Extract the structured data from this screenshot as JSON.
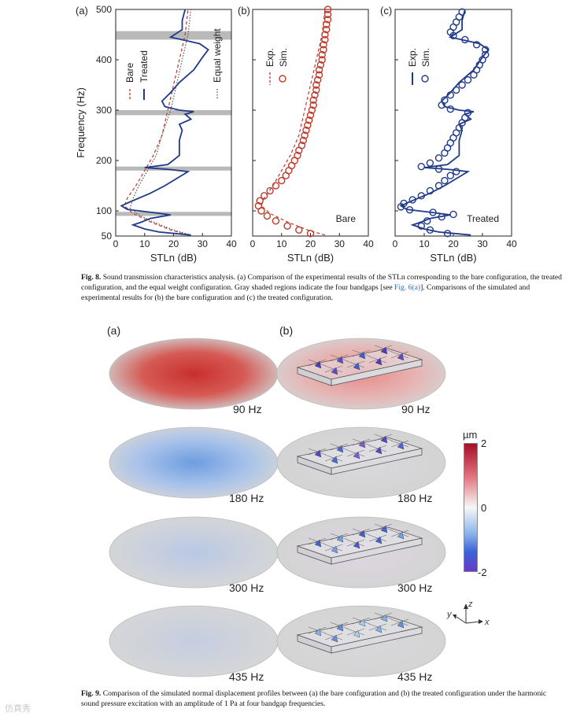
{
  "figure8": {
    "caption_label": "Fig. 8.",
    "caption_text_1": " Sound transmission characteristics analysis. (a) Comparison of the experimental results of the STLn corresponding to the bare configuration, the treated configuration, and the equal weight configuration. Gray shaded regions indicate the four bandgaps [see ",
    "caption_ref": "Fig. 6(a)",
    "caption_text_2": "]. Comparisons of the simulated and experimental results for (b) the bare configuration and (c) the treated configuration.",
    "colors": {
      "bare": "#c0392b",
      "treated": "#1f3a8a",
      "equal": "#555555",
      "band": "#b9b9b9"
    }
  },
  "chart_data": [
    {
      "type": "line",
      "panel": "(a)",
      "xlabel": "STLn (dB)",
      "ylabel": "Frequency (Hz)",
      "xlim": [
        0,
        40
      ],
      "ylim": [
        50,
        500
      ],
      "xticks": [
        "0",
        "10",
        "20",
        "30",
        "40"
      ],
      "yticks": [
        "50",
        "100",
        "200",
        "300",
        "400",
        "500"
      ],
      "bandgaps_hz": [
        [
          90,
          98
        ],
        [
          180,
          188
        ],
        [
          290,
          300
        ],
        [
          440,
          457
        ]
      ],
      "legend": [
        "Bare",
        "Treated",
        "Equal weight"
      ],
      "series": [
        {
          "name": "Bare",
          "style": "dashed",
          "points": [
            [
              25,
              52
            ],
            [
              19,
              62
            ],
            [
              12,
              78
            ],
            [
              6,
              95
            ],
            [
              3,
              110
            ],
            [
              4,
              125
            ],
            [
              7,
              150
            ],
            [
              10,
              180
            ],
            [
              13,
              210
            ],
            [
              16,
              250
            ],
            [
              18,
              300
            ],
            [
              20,
              350
            ],
            [
              22,
              400
            ],
            [
              24,
              450
            ],
            [
              25,
              500
            ]
          ]
        },
        {
          "name": "Treated",
          "style": "solid",
          "points": [
            [
              26,
              52
            ],
            [
              15,
              58
            ],
            [
              10,
              64
            ],
            [
              6,
              72
            ],
            [
              9,
              78
            ],
            [
              12,
              85
            ],
            [
              19,
              92
            ],
            [
              14,
              96
            ],
            [
              4,
              103
            ],
            [
              2,
              110
            ],
            [
              5,
              118
            ],
            [
              12,
              135
            ],
            [
              17,
              150
            ],
            [
              25,
              178
            ],
            [
              19,
              182
            ],
            [
              10,
              186
            ],
            [
              18,
              192
            ],
            [
              22,
              210
            ],
            [
              22,
              240
            ],
            [
              23,
              260
            ],
            [
              22,
              272
            ],
            [
              26,
              282
            ],
            [
              24,
              292
            ],
            [
              27,
              297
            ],
            [
              22,
              300
            ],
            [
              17,
              307
            ],
            [
              16,
              318
            ],
            [
              19,
              335
            ],
            [
              22,
              355
            ],
            [
              27,
              380
            ],
            [
              30,
              405
            ],
            [
              32,
              420
            ],
            [
              29,
              432
            ],
            [
              19,
              445
            ],
            [
              23,
              460
            ],
            [
              23,
              478
            ],
            [
              24,
              500
            ]
          ]
        },
        {
          "name": "Equal weight",
          "style": "dotted",
          "points": [
            [
              26,
              52
            ],
            [
              20,
              62
            ],
            [
              13,
              78
            ],
            [
              8,
              92
            ],
            [
              5,
              106
            ],
            [
              6,
              125
            ],
            [
              8,
              150
            ],
            [
              11,
              180
            ],
            [
              14,
              210
            ],
            [
              16,
              250
            ],
            [
              19,
              300
            ],
            [
              21,
              350
            ],
            [
              23,
              400
            ],
            [
              25,
              450
            ],
            [
              26,
              500
            ]
          ]
        }
      ]
    },
    {
      "type": "scatter",
      "panel": "(b)",
      "xlabel": "STLn (dB)",
      "xlim": [
        0,
        40
      ],
      "ylim": [
        50,
        500
      ],
      "xticks": [
        "0",
        "10",
        "20",
        "30",
        "40"
      ],
      "legend": [
        "Exp.",
        "Sim."
      ],
      "annotation": "Bare",
      "series": [
        {
          "name": "Exp.",
          "style": "dashed",
          "points": [
            [
              25,
              52
            ],
            [
              19,
              62
            ],
            [
              12,
              78
            ],
            [
              6,
              95
            ],
            [
              3,
              110
            ],
            [
              4,
              125
            ],
            [
              7,
              150
            ],
            [
              10,
              180
            ],
            [
              13,
              210
            ],
            [
              16,
              250
            ],
            [
              18,
              300
            ],
            [
              20,
              350
            ],
            [
              22,
              400
            ],
            [
              24,
              450
            ],
            [
              25,
              500
            ]
          ]
        },
        {
          "name": "Sim.",
          "style": "markers",
          "points": [
            [
              20,
              55
            ],
            [
              16,
              62
            ],
            [
              12,
              70
            ],
            [
              8,
              80
            ],
            [
              5,
              90
            ],
            [
              3,
              100
            ],
            [
              2,
              110
            ],
            [
              2.5,
              120
            ],
            [
              4,
              130
            ],
            [
              6,
              140
            ],
            [
              8,
              150
            ],
            [
              10,
              160
            ],
            [
              11.5,
              170
            ],
            [
              12.5,
              180
            ],
            [
              13.5,
              190
            ],
            [
              14.5,
              200
            ],
            [
              15.5,
              210
            ],
            [
              16,
              220
            ],
            [
              17,
              230
            ],
            [
              17.5,
              240
            ],
            [
              18,
              250
            ],
            [
              18.5,
              260
            ],
            [
              19,
              270
            ],
            [
              19.5,
              280
            ],
            [
              20,
              290
            ],
            [
              20.5,
              300
            ],
            [
              21,
              310
            ],
            [
              21,
              320
            ],
            [
              21.5,
              330
            ],
            [
              22,
              340
            ],
            [
              22,
              350
            ],
            [
              22.5,
              360
            ],
            [
              23,
              370
            ],
            [
              23,
              380
            ],
            [
              23.5,
              390
            ],
            [
              24,
              400
            ],
            [
              24,
              410
            ],
            [
              24.5,
              420
            ],
            [
              24.5,
              430
            ],
            [
              25,
              440
            ],
            [
              25,
              450
            ],
            [
              25.5,
              460
            ],
            [
              25.5,
              470
            ],
            [
              26,
              480
            ],
            [
              26,
              490
            ],
            [
              26,
              500
            ]
          ]
        }
      ]
    },
    {
      "type": "scatter",
      "panel": "(c)",
      "xlabel": "STLn (dB)",
      "xlim": [
        0,
        40
      ],
      "ylim": [
        50,
        500
      ],
      "xticks": [
        "0",
        "10",
        "20",
        "30",
        "40"
      ],
      "legend": [
        "Exp.",
        "Sim."
      ],
      "annotation": "Treated",
      "series": [
        {
          "name": "Exp.",
          "style": "solid",
          "points": [
            [
              26,
              52
            ],
            [
              15,
              58
            ],
            [
              10,
              64
            ],
            [
              6,
              72
            ],
            [
              9,
              78
            ],
            [
              12,
              85
            ],
            [
              19,
              92
            ],
            [
              14,
              96
            ],
            [
              4,
              103
            ],
            [
              2,
              110
            ],
            [
              5,
              118
            ],
            [
              12,
              135
            ],
            [
              17,
              150
            ],
            [
              25,
              178
            ],
            [
              19,
              182
            ],
            [
              10,
              186
            ],
            [
              18,
              192
            ],
            [
              22,
              210
            ],
            [
              22,
              240
            ],
            [
              23,
              260
            ],
            [
              22,
              272
            ],
            [
              26,
              282
            ],
            [
              24,
              292
            ],
            [
              27,
              297
            ],
            [
              22,
              300
            ],
            [
              17,
              307
            ],
            [
              16,
              318
            ],
            [
              19,
              335
            ],
            [
              22,
              355
            ],
            [
              27,
              380
            ],
            [
              30,
              405
            ],
            [
              32,
              420
            ],
            [
              29,
              432
            ],
            [
              19,
              445
            ],
            [
              23,
              460
            ],
            [
              23,
              478
            ],
            [
              24,
              500
            ]
          ]
        },
        {
          "name": "Sim.",
          "style": "markers",
          "points": [
            [
              18,
              55
            ],
            [
              12,
              62
            ],
            [
              9,
              70
            ],
            [
              11,
              80
            ],
            [
              16,
              88
            ],
            [
              20,
              93
            ],
            [
              13,
              97
            ],
            [
              5,
              102
            ],
            [
              2,
              108
            ],
            [
              3,
              115
            ],
            [
              6,
              122
            ],
            [
              9,
              130
            ],
            [
              12,
              140
            ],
            [
              15,
              150
            ],
            [
              17,
              160
            ],
            [
              19,
              170
            ],
            [
              21,
              178
            ],
            [
              15,
              183
            ],
            [
              9,
              188
            ],
            [
              12,
              195
            ],
            [
              15,
              205
            ],
            [
              17,
              215
            ],
            [
              18,
              225
            ],
            [
              19,
              235
            ],
            [
              20,
              245
            ],
            [
              21,
              255
            ],
            [
              22,
              265
            ],
            [
              23,
              275
            ],
            [
              24,
              285
            ],
            [
              25,
              295
            ],
            [
              19,
              302
            ],
            [
              16,
              310
            ],
            [
              17,
              320
            ],
            [
              19,
              330
            ],
            [
              21,
              340
            ],
            [
              23,
              350
            ],
            [
              25,
              360
            ],
            [
              27,
              370
            ],
            [
              28,
              380
            ],
            [
              29,
              390
            ],
            [
              30,
              400
            ],
            [
              31,
              410
            ],
            [
              31,
              420
            ],
            [
              28,
              430
            ],
            [
              24,
              440
            ],
            [
              20,
              448
            ],
            [
              19,
              455
            ],
            [
              20,
              465
            ],
            [
              21,
              475
            ],
            [
              22,
              485
            ],
            [
              23,
              495
            ]
          ]
        }
      ]
    }
  ],
  "figure9": {
    "caption_label": "Fig. 9.",
    "caption_text": " Comparison of the simulated normal displacement profiles between (a) the bare configuration and (b) the treated configuration under the harmonic sound pressure excitation with an amplitude of 1 Pa at four bandgap frequencies.",
    "panel_a_label": "(a)",
    "panel_b_label": "(b)",
    "frequencies": [
      "90 Hz",
      "180 Hz",
      "300 Hz",
      "435 Hz"
    ],
    "bare_displacement_colors": [
      "#d14a4a",
      "#7fa6e0",
      "#bcc6d8",
      "#c7cbd4"
    ],
    "colorbar": {
      "unit": "µm",
      "ticks": [
        "2",
        "0",
        "-2"
      ],
      "top_color": "#b2182b",
      "mid_color": "#f7f7f7",
      "bottom_color": "#5e3cc6"
    },
    "axes_triad": {
      "x": "x",
      "y": "y",
      "z": "z"
    }
  },
  "watermark": "仿真秀"
}
